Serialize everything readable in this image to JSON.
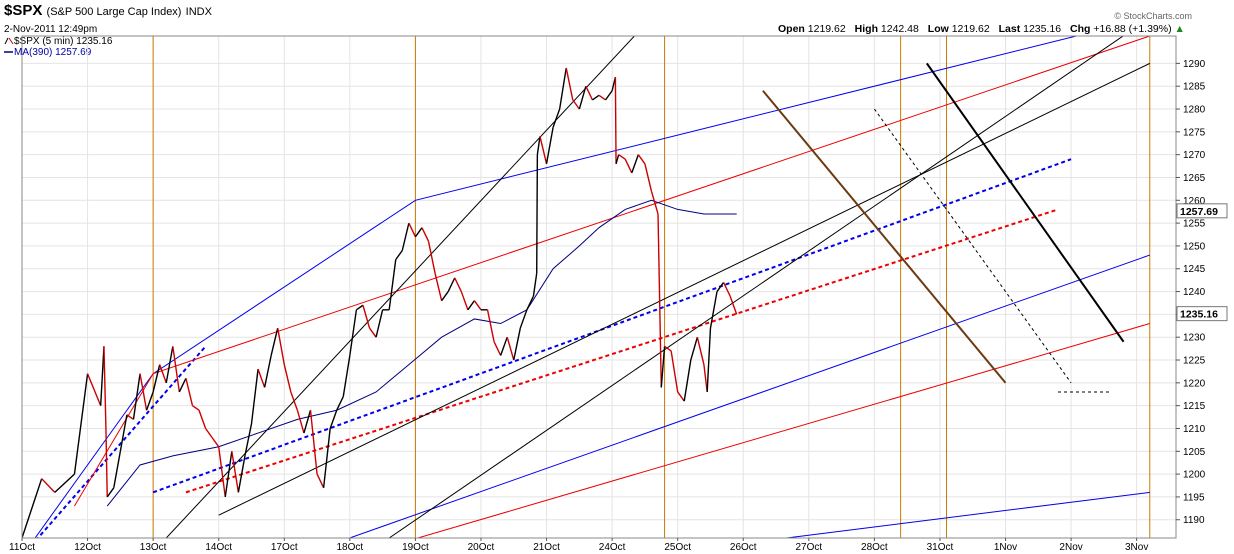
{
  "header": {
    "symbol": "$SPX",
    "name": "(S&P 500 Large Cap Index)",
    "exchange": "INDX",
    "date": "2-Nov-2011 12:49pm",
    "legend_price": "$SPX (5 min) 1235.16",
    "legend_ma": "MA(390) 1257.69",
    "open_label": "Open",
    "open": "1219.62",
    "high_label": "High",
    "high": "1242.48",
    "low_label": "Low",
    "low": "1219.62",
    "last_label": "Last",
    "last": "1235.16",
    "chg_label": "Chg",
    "chg": "+16.88 (+1.39%)",
    "source": "© StockCharts.com"
  },
  "colors": {
    "price_up": "#000000",
    "price_down": "#cc0000",
    "ma": "#00007f",
    "blue": "#0000ee",
    "red": "#ee0000",
    "vline": "#cc7a00",
    "brown": "#6b3a12",
    "grid": "#e4e4e4"
  },
  "chart_data": {
    "type": "line",
    "series": [
      {
        "name": "$SPX (5 min)",
        "color": "#000000",
        "points": [
          [
            0,
            1186
          ],
          [
            3,
            1199
          ],
          [
            5,
            1196
          ],
          [
            8,
            1200
          ],
          [
            10,
            1222
          ],
          [
            12,
            1215
          ],
          [
            12.5,
            1228
          ],
          [
            12.8,
            1210
          ],
          [
            13,
            1195
          ],
          [
            14,
            1197
          ],
          [
            15,
            1205
          ],
          [
            16,
            1213
          ],
          [
            17,
            1212
          ],
          [
            18,
            1222
          ],
          [
            19,
            1214
          ],
          [
            20,
            1218
          ],
          [
            21,
            1224
          ],
          [
            22,
            1220
          ],
          [
            23,
            1228
          ],
          [
            24,
            1218
          ],
          [
            25,
            1221
          ],
          [
            26,
            1215
          ],
          [
            27,
            1214
          ],
          [
            28,
            1210
          ],
          [
            29,
            1208
          ],
          [
            30,
            1206
          ],
          [
            31,
            1195
          ],
          [
            32,
            1205
          ],
          [
            33,
            1196
          ],
          [
            34,
            1204
          ],
          [
            35,
            1211
          ],
          [
            36,
            1223
          ],
          [
            37,
            1219
          ],
          [
            38,
            1226
          ],
          [
            39,
            1232
          ],
          [
            40,
            1224
          ],
          [
            41,
            1218
          ],
          [
            42,
            1214
          ],
          [
            43,
            1209
          ],
          [
            44,
            1214
          ],
          [
            45,
            1200
          ],
          [
            46,
            1197
          ],
          [
            47,
            1210
          ],
          [
            48,
            1214
          ],
          [
            49,
            1217
          ],
          [
            50,
            1226
          ],
          [
            51,
            1236
          ],
          [
            52,
            1237
          ],
          [
            53,
            1232
          ],
          [
            54,
            1230
          ],
          [
            55,
            1236
          ],
          [
            56,
            1236
          ],
          [
            57,
            1247
          ],
          [
            58,
            1249
          ],
          [
            59,
            1255
          ],
          [
            60,
            1252
          ],
          [
            61,
            1254
          ],
          [
            62,
            1251
          ],
          [
            63,
            1244
          ],
          [
            64,
            1238
          ],
          [
            65,
            1240
          ],
          [
            66,
            1243
          ],
          [
            67,
            1240
          ],
          [
            68,
            1236
          ],
          [
            69,
            1238
          ],
          [
            70,
            1236
          ],
          [
            71,
            1236
          ],
          [
            72,
            1229
          ],
          [
            73,
            1226
          ],
          [
            74,
            1230
          ],
          [
            75,
            1225
          ],
          [
            76,
            1232
          ],
          [
            77,
            1236
          ],
          [
            78,
            1239
          ],
          [
            78.5,
            1244
          ],
          [
            78.6,
            1270
          ],
          [
            79,
            1274
          ],
          [
            80,
            1268
          ],
          [
            81,
            1276
          ],
          [
            82,
            1280
          ],
          [
            83,
            1289
          ],
          [
            84,
            1282
          ],
          [
            85,
            1280
          ],
          [
            86,
            1285
          ],
          [
            87,
            1282
          ],
          [
            88,
            1283
          ],
          [
            89,
            1282
          ],
          [
            90,
            1284
          ],
          [
            90.5,
            1287
          ],
          [
            90.6,
            1268
          ],
          [
            91,
            1270
          ],
          [
            92,
            1269
          ],
          [
            93,
            1266
          ],
          [
            94,
            1270
          ],
          [
            95,
            1268
          ],
          [
            96,
            1262
          ],
          [
            97,
            1257
          ],
          [
            97.5,
            1219
          ],
          [
            98,
            1228
          ],
          [
            99,
            1227
          ],
          [
            100,
            1218
          ],
          [
            101,
            1216
          ],
          [
            102,
            1225
          ],
          [
            103,
            1230
          ],
          [
            104,
            1224
          ],
          [
            104.5,
            1218
          ],
          [
            105,
            1232
          ],
          [
            106,
            1240
          ],
          [
            107,
            1242
          ],
          [
            108,
            1239
          ],
          [
            109,
            1235
          ]
        ]
      },
      {
        "name": "MA(390)",
        "color": "#00007f",
        "points": [
          [
            13,
            1193
          ],
          [
            18,
            1202
          ],
          [
            23,
            1204
          ],
          [
            30,
            1206
          ],
          [
            36,
            1209
          ],
          [
            42,
            1212
          ],
          [
            48,
            1214
          ],
          [
            54,
            1218
          ],
          [
            59,
            1224
          ],
          [
            64,
            1230
          ],
          [
            69,
            1234
          ],
          [
            73,
            1233
          ],
          [
            77,
            1236
          ],
          [
            81,
            1245
          ],
          [
            85,
            1250
          ],
          [
            88,
            1254
          ],
          [
            92,
            1258
          ],
          [
            96,
            1260
          ],
          [
            100,
            1258
          ],
          [
            104,
            1257
          ],
          [
            109,
            1257
          ]
        ]
      }
    ],
    "x_ticks": [
      {
        "x": 0,
        "label": "11Oct"
      },
      {
        "x": 10,
        "label": "12Oct"
      },
      {
        "x": 20,
        "label": "13Oct"
      },
      {
        "x": 30,
        "label": "14Oct"
      },
      {
        "x": 40,
        "label": "17Oct"
      },
      {
        "x": 50,
        "label": "18Oct"
      },
      {
        "x": 60,
        "label": "19Oct"
      },
      {
        "x": 70,
        "label": "20Oct"
      },
      {
        "x": 80,
        "label": "21Oct"
      },
      {
        "x": 90,
        "label": "24Oct"
      },
      {
        "x": 100,
        "label": "25Oct"
      },
      {
        "x": 110,
        "label": "26Oct"
      },
      {
        "x": 120,
        "label": "27Oct"
      },
      {
        "x": 130,
        "label": "28Oct"
      },
      {
        "x": 140,
        "label": "31Oct"
      },
      {
        "x": 150,
        "label": "1Nov"
      },
      {
        "x": 160,
        "label": "2Nov"
      },
      {
        "x": 170,
        "label": "3Nov"
      }
    ],
    "y_ticks": [
      1190,
      1195,
      1200,
      1205,
      1210,
      1215,
      1220,
      1225,
      1230,
      1235,
      1240,
      1245,
      1250,
      1255,
      1260,
      1265,
      1270,
      1275,
      1280,
      1285,
      1290
    ],
    "ylim": [
      1186,
      1296
    ],
    "xlim": [
      0,
      176
    ],
    "y_axis_tags": [
      {
        "value": 1257.69,
        "label": "1257.69"
      },
      {
        "value": 1235.16,
        "label": "1235.16"
      }
    ],
    "vertical_lines": [
      20,
      60,
      98,
      134,
      141,
      172
    ],
    "trendlines": [
      {
        "color": "#0000ee",
        "style": "solid",
        "points": [
          [
            0,
            1182
          ],
          [
            20,
            1222
          ],
          [
            60,
            1260
          ],
          [
            172,
            1300
          ]
        ]
      },
      {
        "color": "#0000ee",
        "style": "solid",
        "points": [
          [
            48,
            1185
          ],
          [
            172,
            1248
          ]
        ]
      },
      {
        "color": "#0000ee",
        "style": "solid",
        "points": [
          [
            100,
            1183
          ],
          [
            172,
            1196
          ]
        ]
      },
      {
        "color": "#0000ee",
        "style": "dashed",
        "points": [
          [
            20,
            1196
          ],
          [
            160,
            1269
          ]
        ]
      },
      {
        "color": "#0000ee",
        "style": "dashed",
        "points": [
          [
            0,
            1182
          ],
          [
            28,
            1228
          ]
        ]
      },
      {
        "color": "#ee0000",
        "style": "solid",
        "points": [
          [
            8,
            1193
          ],
          [
            20,
            1222
          ],
          [
            172,
            1296
          ]
        ]
      },
      {
        "color": "#ee0000",
        "style": "solid",
        "points": [
          [
            58,
            1185
          ],
          [
            172,
            1233
          ]
        ]
      },
      {
        "color": "#ee0000",
        "style": "dashed",
        "points": [
          [
            25,
            1196
          ],
          [
            158,
            1258
          ]
        ]
      },
      {
        "color": "#000000",
        "style": "solid",
        "points": [
          [
            22,
            1186
          ],
          [
            96,
            1300
          ]
        ]
      },
      {
        "color": "#000000",
        "style": "solid",
        "points": [
          [
            56,
            1186
          ],
          [
            172,
            1300
          ]
        ]
      },
      {
        "color": "#000000",
        "style": "solid",
        "points": [
          [
            30,
            1191
          ],
          [
            172,
            1290
          ]
        ]
      },
      {
        "color": "#000000",
        "style": "solid",
        "width": 2,
        "points": [
          [
            138,
            1290
          ],
          [
            168,
            1229
          ]
        ]
      },
      {
        "color": "#000000",
        "style": "dashed",
        "points": [
          [
            130,
            1280
          ],
          [
            160,
            1220
          ]
        ]
      },
      {
        "color": "#000000",
        "style": "dashed",
        "points": [
          [
            158,
            1218
          ],
          [
            166,
            1218
          ]
        ]
      },
      {
        "color": "#6b3a12",
        "style": "solid",
        "width": 2,
        "points": [
          [
            113,
            1284
          ],
          [
            150,
            1220
          ]
        ]
      }
    ],
    "grid": true
  }
}
